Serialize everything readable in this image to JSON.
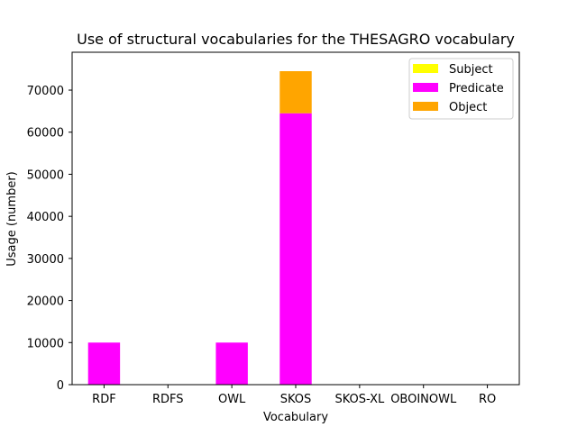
{
  "chart_data": {
    "type": "bar",
    "stacked": true,
    "title": "Use of structural vocabularies for the THESAGRO vocabulary",
    "xlabel": "Vocabulary",
    "ylabel": "Usage (number)",
    "categories": [
      "RDF",
      "RDFS",
      "OWL",
      "SKOS",
      "SKOS-XL",
      "OBOINOWL",
      "RO"
    ],
    "ylim": [
      0,
      79000
    ],
    "yticks": [
      0,
      10000,
      20000,
      30000,
      40000,
      50000,
      60000,
      70000
    ],
    "ytick_labels": [
      "0",
      "10000",
      "20000",
      "30000",
      "40000",
      "50000",
      "60000",
      "70000"
    ],
    "grid": false,
    "legend_position": "top-right",
    "series": [
      {
        "name": "Subject",
        "color": "#ffff00",
        "values": [
          0,
          0,
          0,
          0,
          0,
          0,
          0
        ]
      },
      {
        "name": "Predicate",
        "color": "#ff00ff",
        "values": [
          10000,
          0,
          10000,
          64500,
          0,
          0,
          0
        ]
      },
      {
        "name": "Object",
        "color": "#ffa500",
        "values": [
          0,
          0,
          0,
          10000,
          0,
          0,
          0
        ]
      }
    ]
  }
}
